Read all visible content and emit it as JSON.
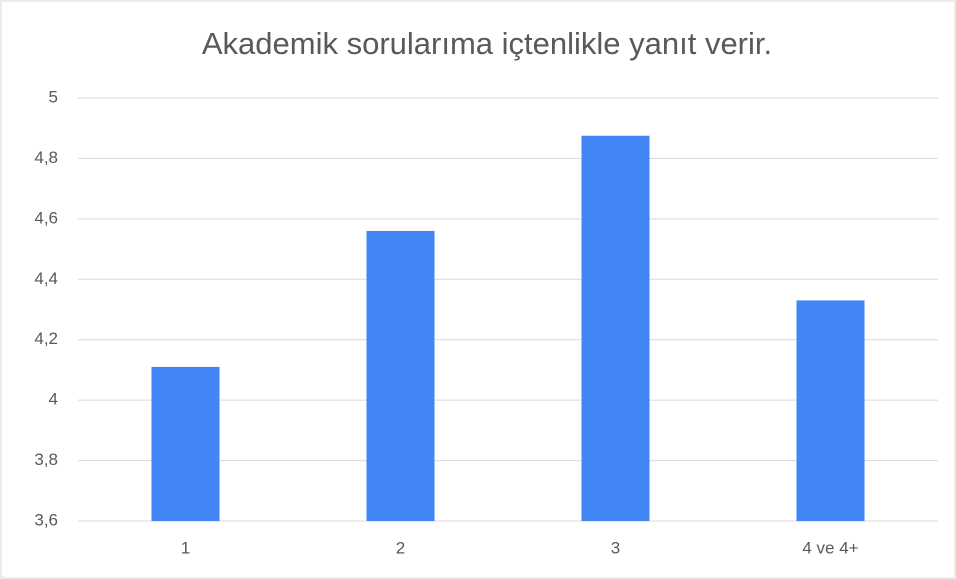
{
  "chart_data": {
    "type": "bar",
    "title": "Akademik sorularıma içtenlikle yanıt verir.",
    "categories": [
      "1",
      "2",
      "3",
      "4 ve 4+"
    ],
    "values": [
      4.11,
      4.56,
      4.875,
      4.33
    ],
    "color": "#4285f4",
    "ylim": [
      3.6,
      5
    ],
    "yticks": [
      {
        "value": 3.6,
        "label": "3,6"
      },
      {
        "value": 3.8,
        "label": "3,8"
      },
      4,
      {
        "value": 4.2,
        "label": "4,2"
      },
      {
        "value": 4.4,
        "label": "4,4"
      },
      {
        "value": 4.6,
        "label": "4,6"
      },
      {
        "value": 4.8,
        "label": "4,8"
      },
      5
    ],
    "grid": true
  }
}
